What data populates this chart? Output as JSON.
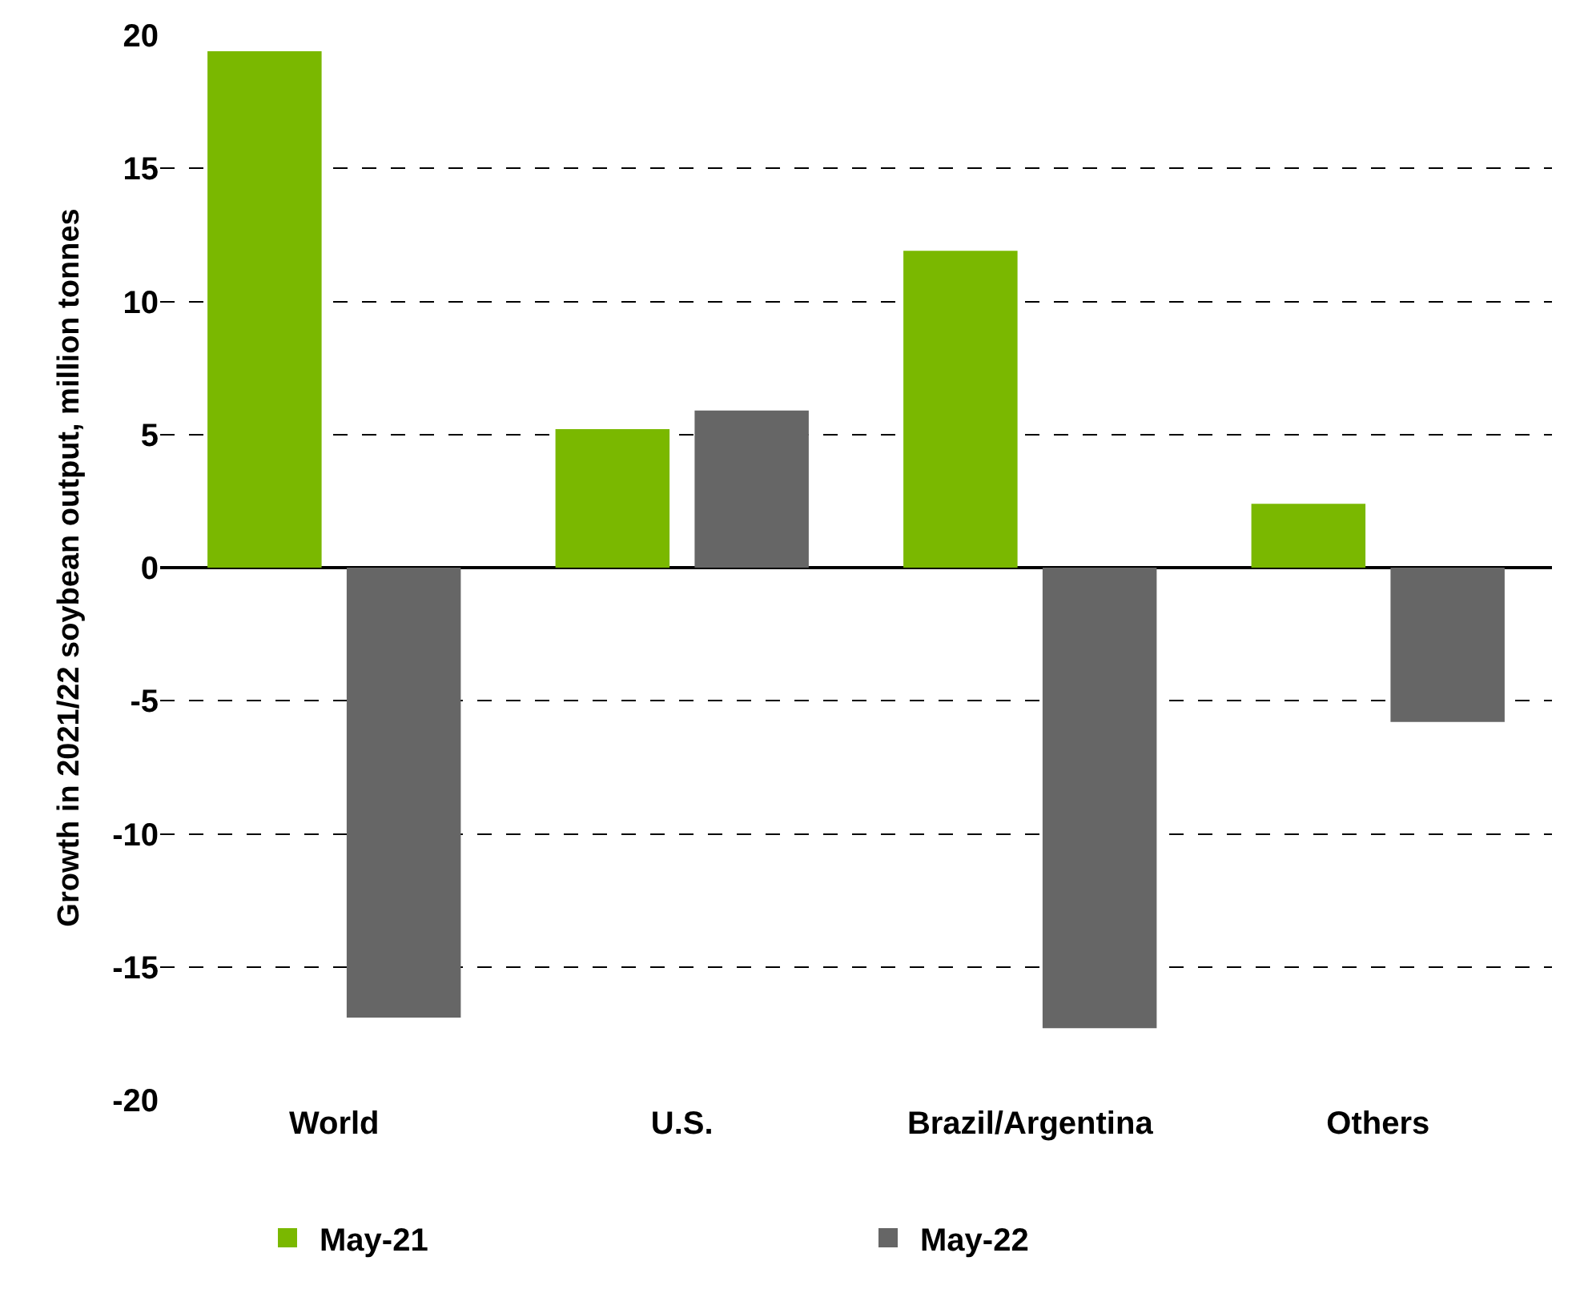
{
  "chart_data": {
    "type": "bar",
    "ylabel": "Growth in 2021/22 soybean output, million tonnes",
    "categories": [
      "World",
      "U.S.",
      "Brazil/Argentina",
      "Others"
    ],
    "series": [
      {
        "name": "May-21",
        "color": "#7ab800",
        "values": [
          19.4,
          5.2,
          11.9,
          2.4
        ]
      },
      {
        "name": "May-22",
        "color": "#666666",
        "values": [
          -16.9,
          5.9,
          -17.3,
          -5.8
        ]
      }
    ],
    "ylim": [
      -20,
      20
    ],
    "yticks": [
      -20,
      -15,
      -10,
      -5,
      0,
      5,
      10,
      15,
      20
    ],
    "grid": "y",
    "legend": "bottom"
  }
}
